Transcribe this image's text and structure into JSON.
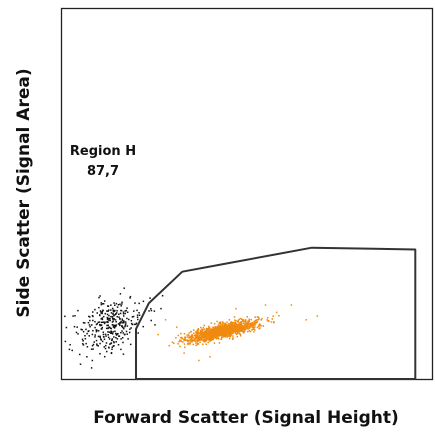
{
  "chart_data": {
    "type": "scatter",
    "title": "",
    "xlabel": "Forward Scatter (Signal Height)",
    "ylabel": "Side Scatter (Signal Area)",
    "xlim": [
      0,
      1
    ],
    "ylim": [
      0,
      1
    ],
    "grid": false,
    "legend": "none",
    "gate": {
      "name": "Region H",
      "value": "87,7",
      "color": "#333333",
      "vertices": [
        [
          0.2,
          0.0
        ],
        [
          0.2,
          0.135
        ],
        [
          0.235,
          0.205
        ],
        [
          0.325,
          0.29
        ],
        [
          0.43,
          0.3095
        ],
        [
          0.675,
          0.355
        ],
        [
          0.955,
          0.35
        ],
        [
          0.955,
          0.0
        ]
      ]
    },
    "series": [
      {
        "color": "#f08a10",
        "count": 1400,
        "center": [
          0.435,
          0.13
        ],
        "spread": [
          0.047,
          0.014
        ],
        "correlation": 0.75,
        "outliers": [
          [
            0.26,
            0.12
          ],
          [
            0.29,
            0.09
          ],
          [
            0.33,
            0.07
          ],
          [
            0.37,
            0.05
          ],
          [
            0.58,
            0.18
          ],
          [
            0.62,
            0.2
          ],
          [
            0.66,
            0.16
          ],
          [
            0.55,
            0.2
          ],
          [
            0.53,
            0.16
          ],
          [
            0.31,
            0.14
          ],
          [
            0.69,
            0.17
          ],
          [
            0.47,
            0.19
          ],
          [
            0.4,
            0.06
          ],
          [
            0.28,
            0.16
          ]
        ]
      },
      {
        "color": "#111111",
        "count": 330,
        "center": [
          0.13,
          0.145
        ],
        "spread": [
          0.045,
          0.035
        ],
        "correlation": 0.3,
        "outliers": [
          [
            0.02,
            0.08
          ],
          [
            0.03,
            0.17
          ],
          [
            0.05,
            0.04
          ],
          [
            0.22,
            0.21
          ],
          [
            0.24,
            0.19
          ],
          [
            0.2,
            0.05
          ],
          [
            0.08,
            0.03
          ],
          [
            0.1,
            0.22
          ]
        ]
      }
    ]
  }
}
